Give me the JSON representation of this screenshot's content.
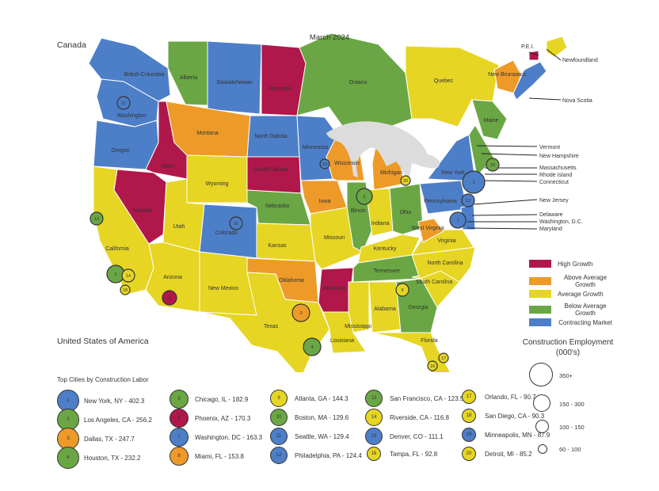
{
  "title": "March 2024",
  "country_labels": {
    "canada": "Canada",
    "usa": "United States of America"
  },
  "colors": {
    "high": "#b0174a",
    "above": "#ee9a28",
    "average": "#e6d523",
    "below": "#6aa744",
    "contracting": "#4d7fc8",
    "lake": "#dcdcdc"
  },
  "legend": [
    {
      "label": "High Growth",
      "key": "high"
    },
    {
      "label": "Above Average Growth",
      "key": "above"
    },
    {
      "label": "Average Growth",
      "key": "average"
    },
    {
      "label": "Below Average Growth",
      "key": "below"
    },
    {
      "label": "Contracting Market",
      "key": "contracting"
    }
  ],
  "size_legend": {
    "title": "Construction Employment (000's)",
    "items": [
      "350+",
      "150 - 300",
      "100 - 150",
      "60 - 100"
    ]
  },
  "cities_title": "Top Cities by Construction Labor",
  "cities": [
    {
      "rank": "1",
      "label": "New York, NY - 402.3",
      "key": "contracting"
    },
    {
      "rank": "2",
      "label": "Los Angeles, CA - 256.2",
      "key": "below"
    },
    {
      "rank": "3",
      "label": "Dallas, TX - 247.7",
      "key": "above"
    },
    {
      "rank": "4",
      "label": "Houston, TX - 232.2",
      "key": "below"
    },
    {
      "rank": "5",
      "label": "Chicago, IL - 182.9",
      "key": "below"
    },
    {
      "rank": "6",
      "label": "Phoenix, AZ - 170.3",
      "key": "high"
    },
    {
      "rank": "7",
      "label": "Washington, DC - 163.3",
      "key": "contracting"
    },
    {
      "rank": "8",
      "label": "Miami, FL - 153.8",
      "key": "above"
    },
    {
      "rank": "9",
      "label": "Atlanta, GA - 144.3",
      "key": "average"
    },
    {
      "rank": "10",
      "label": "Boston, MA - 129.6",
      "key": "below"
    },
    {
      "rank": "11",
      "label": "Seattle, WA - 129.4",
      "key": "contracting"
    },
    {
      "rank": "12",
      "label": "Philadelphia, PA - 124.4",
      "key": "contracting"
    },
    {
      "rank": "13",
      "label": "San Francisco, CA - 123.5",
      "key": "below"
    },
    {
      "rank": "14",
      "label": "Riverside, CA - 116.8",
      "key": "average"
    },
    {
      "rank": "15",
      "label": "Denver, CO - 111.1",
      "key": "contracting"
    },
    {
      "rank": "16",
      "label": "Tampa, FL - 92.8",
      "key": "average"
    },
    {
      "rank": "17",
      "label": "Orlando, FL - 90.7",
      "key": "average"
    },
    {
      "rank": "18",
      "label": "San Diego, CA - 90.3",
      "key": "average"
    },
    {
      "rank": "19",
      "label": "Minneapolis, MN - 87.9",
      "key": "contracting"
    },
    {
      "rank": "20",
      "label": "Detroit, MI - 85.2",
      "key": "average"
    }
  ],
  "regions": [
    {
      "name": "British Columbia",
      "key": "contracting"
    },
    {
      "name": "Alberta",
      "key": "below"
    },
    {
      "name": "Saskatchewan",
      "key": "contracting"
    },
    {
      "name": "Manitoba",
      "key": "high"
    },
    {
      "name": "Ontario",
      "key": "below"
    },
    {
      "name": "Quebec",
      "key": "average"
    },
    {
      "name": "New Brunswick",
      "key": "above"
    },
    {
      "name": "Washington",
      "key": "contracting"
    },
    {
      "name": "Oregon",
      "key": "contracting"
    },
    {
      "name": "California",
      "key": "average"
    },
    {
      "name": "Nevada",
      "key": "high"
    },
    {
      "name": "Idaho",
      "key": "high"
    },
    {
      "name": "Montana",
      "key": "above"
    },
    {
      "name": "Wyoming",
      "key": "average"
    },
    {
      "name": "Utah",
      "key": "average"
    },
    {
      "name": "Arizona",
      "key": "average"
    },
    {
      "name": "Colorado",
      "key": "contracting"
    },
    {
      "name": "New Mexico",
      "key": "average"
    },
    {
      "name": "North Dakota",
      "key": "contracting"
    },
    {
      "name": "South Dakota",
      "key": "high"
    },
    {
      "name": "Nebraska",
      "key": "below"
    },
    {
      "name": "Kansas",
      "key": "average"
    },
    {
      "name": "Oklahoma",
      "key": "above"
    },
    {
      "name": "Texas",
      "key": "average"
    },
    {
      "name": "Minnesota",
      "key": "contracting"
    },
    {
      "name": "Iowa",
      "key": "above"
    },
    {
      "name": "Missouri",
      "key": "average"
    },
    {
      "name": "Arkansas",
      "key": "high"
    },
    {
      "name": "Louisiana",
      "key": "average"
    },
    {
      "name": "Wisconsin",
      "key": "above"
    },
    {
      "name": "Illinois",
      "key": "below"
    },
    {
      "name": "Michigan",
      "key": "above"
    },
    {
      "name": "Indiana",
      "key": "average"
    },
    {
      "name": "Ohio",
      "key": "below"
    },
    {
      "name": "Kentucky",
      "key": "average"
    },
    {
      "name": "Tennessee",
      "key": "below"
    },
    {
      "name": "Mississippi",
      "key": "average"
    },
    {
      "name": "Alabama",
      "key": "average"
    },
    {
      "name": "Georgia",
      "key": "below"
    },
    {
      "name": "Florida",
      "key": "average"
    },
    {
      "name": "South Carolina",
      "key": "average"
    },
    {
      "name": "North Carolina",
      "key": "average"
    },
    {
      "name": "Virginia",
      "key": "average"
    },
    {
      "name": "West Virginia",
      "key": "above"
    },
    {
      "name": "Pennsylvania",
      "key": "contracting"
    },
    {
      "name": "New York",
      "key": "contracting"
    },
    {
      "name": "Maine",
      "key": "below"
    }
  ],
  "callouts": [
    "P.E.I.",
    "Newfoundland",
    "Nova Scotia",
    "Vermont",
    "New Hampshire",
    "Massachusetts",
    "Rhode Island",
    "Connecticut",
    "New Jersey",
    "Delaware",
    "Washington, D.C.",
    "Maryland"
  ]
}
